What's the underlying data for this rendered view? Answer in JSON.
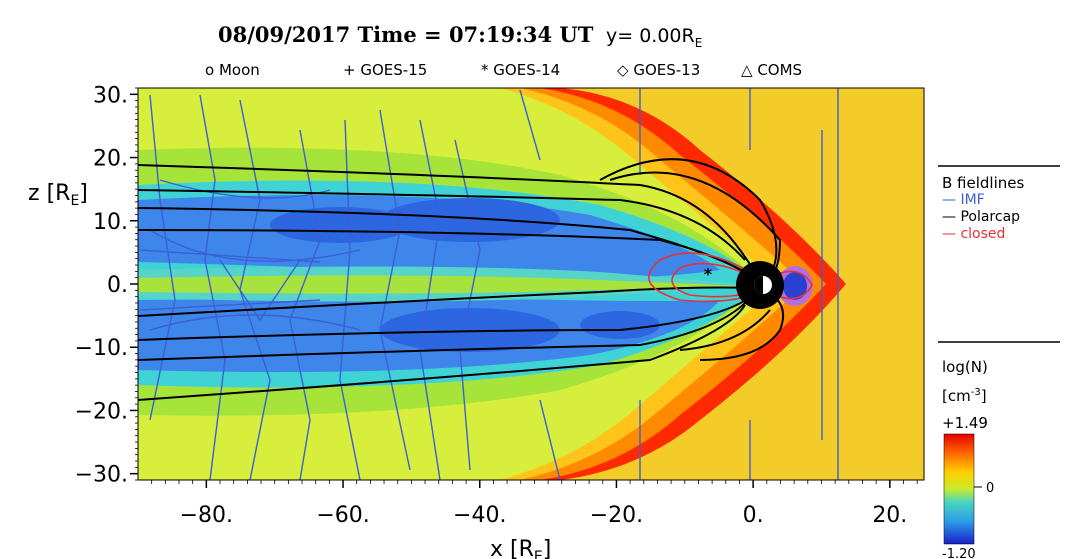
{
  "header": {
    "title_date_time": "08/09/2017 Time = 07:19:34 UT",
    "title_y": "y= 0.00R",
    "title_y_sub": "E"
  },
  "legend_top": [
    {
      "symbol": "o",
      "label": "Moon"
    },
    {
      "symbol": "+",
      "label": "GOES-15"
    },
    {
      "symbol": "*",
      "label": "GOES-14"
    },
    {
      "symbol": "◇",
      "label": "GOES-13"
    },
    {
      "symbol": "△",
      "label": "COMS"
    }
  ],
  "fieldline_legend": {
    "title": "B fieldlines",
    "items": [
      {
        "label": "IMF",
        "color": "#3a5fd8"
      },
      {
        "label": "Polarcap",
        "color": "#000000"
      },
      {
        "label": "closed",
        "color": "#e8303a"
      }
    ]
  },
  "colorbar": {
    "title": "log(N)",
    "units_main": "[cm",
    "units_sup": "-3",
    "units_close": "]",
    "max_label": "+1.49",
    "mid_label": "0",
    "min_label": "-1.20"
  },
  "chart_data": {
    "type": "heatmap",
    "title": "08/09/2017 Time = 07:19:34 UT y= 0.00R_E",
    "xlabel": "x [R_E]",
    "ylabel": "z [R_E]",
    "xlim": [
      -90,
      25
    ],
    "ylim": [
      -31,
      31
    ],
    "x_ticks": [
      -80,
      -60,
      -40,
      -20,
      0,
      20
    ],
    "x_tick_labels": [
      "−80.",
      "−60.",
      "−40.",
      "−20.",
      "0.",
      "20."
    ],
    "y_ticks": [
      30,
      20,
      10,
      0,
      -10,
      -20,
      -30
    ],
    "y_tick_labels": [
      "30.",
      "20.",
      "10.",
      "0.",
      "−10.",
      "−20.",
      "−30."
    ],
    "xlabel_main": "x",
    "xlabel_unit": "[R",
    "xlabel_sub": "E",
    "xlabel_close": "]",
    "ylabel_main": "z",
    "ylabel_unit": "[R",
    "ylabel_sub": "E",
    "ylabel_close": "]",
    "colorbar_range": [
      -1.2,
      1.49
    ],
    "colors": {
      "solar_wind": "#f4cc2a",
      "magnetosheath": "#ff2a00",
      "sheath_orange": "#ff8a00",
      "lobe_yellow": "#d8ee3c",
      "mid_green": "#9ae03a",
      "cyan": "#3ad6e6",
      "lobe_blue": "#3f7fe8",
      "deep_blue": "#2858d8"
    },
    "fieldlines": {
      "imf_color": "#3a5fd8",
      "polarcap_color": "#000000",
      "closed_color": "#e8303a"
    },
    "spacecraft": [
      {
        "name": "GOES-14",
        "x": -6.5,
        "z": 2
      }
    ]
  }
}
